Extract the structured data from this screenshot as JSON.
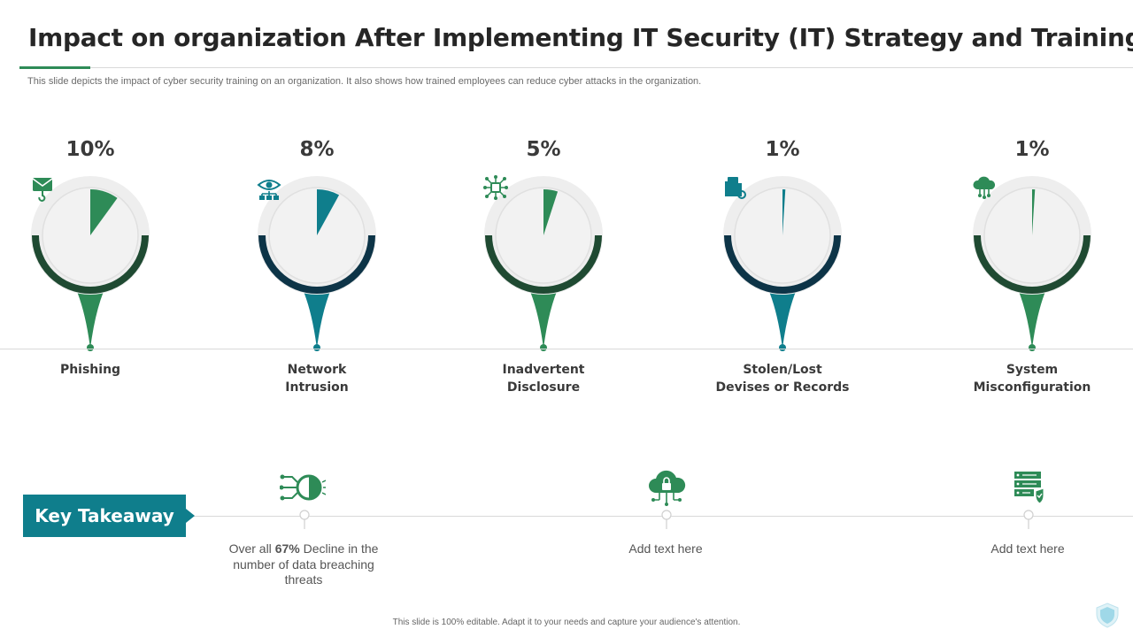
{
  "title": "Impact on organization After Implementing IT Security (IT) Strategy and Training",
  "subtitle": "This slide depicts the impact of cyber security training on an organization. It also shows how trained employees can reduce cyber attacks in the organization.",
  "colors": {
    "green": "#2e8b57",
    "teal": "#0f7e8c",
    "dark_green": "#1f4a32",
    "dark_teal": "#0d3447"
  },
  "metrics": [
    {
      "percent": "10%",
      "value": 10,
      "label_line1": "Phishing",
      "label_line2": "",
      "icon": "email-hook-icon",
      "accent": "green"
    },
    {
      "percent": "8%",
      "value": 8,
      "label_line1": "Network",
      "label_line2": "Intrusion",
      "icon": "eye-network-icon",
      "accent": "teal"
    },
    {
      "percent": "5%",
      "value": 5,
      "label_line1": "Inadvertent",
      "label_line2": "Disclosure",
      "icon": "chip-network-icon",
      "accent": "green"
    },
    {
      "percent": "1%",
      "value": 1,
      "label_line1": "Stolen/Lost",
      "label_line2": "Devises or Records",
      "icon": "files-icon",
      "accent": "teal"
    },
    {
      "percent": "1%",
      "value": 1,
      "label_line1": "System",
      "label_line2": "Misconfiguration",
      "icon": "cloud-network-icon",
      "accent": "green"
    }
  ],
  "takeaway": {
    "badge": "Key Takeaway",
    "items": [
      {
        "text_before": "Over all ",
        "text_bold": "67%",
        "text_after": " Decline in the number of data breaching threats",
        "icon": "eye-circuit-icon"
      },
      {
        "text_before": "Add text here",
        "text_bold": "",
        "text_after": "",
        "icon": "cloud-lock-icon"
      },
      {
        "text_before": "Add text here",
        "text_bold": "",
        "text_after": "",
        "icon": "server-shield-icon"
      }
    ]
  },
  "footer": "This slide is 100% editable. Adapt it to your needs and capture your audience's attention."
}
